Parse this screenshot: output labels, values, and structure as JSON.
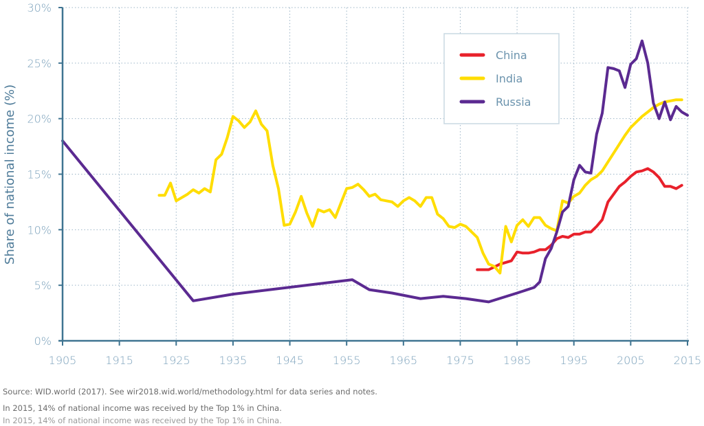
{
  "chart_data": {
    "type": "line",
    "title": "",
    "xlabel": "",
    "ylabel": "Share of national income (%)",
    "xlim": [
      1905,
      2015
    ],
    "ylim": [
      0,
      30
    ],
    "x_ticks": [
      1905,
      1915,
      1925,
      1935,
      1945,
      1955,
      1965,
      1975,
      1985,
      1995,
      2005,
      2015
    ],
    "x_tick_labels": [
      "1905",
      "1915",
      "1925",
      "1935",
      "1945",
      "1955",
      "1965",
      "1975",
      "1985",
      "1995",
      "2005",
      "2015"
    ],
    "y_ticks": [
      0,
      5,
      10,
      15,
      20,
      25,
      30
    ],
    "y_tick_labels": [
      "0%",
      "5%",
      "10%",
      "15%",
      "20%",
      "25%",
      "30%"
    ],
    "grid": true,
    "legend_position": "top-right",
    "series": [
      {
        "name": "China",
        "color": "#e8212b",
        "points": [
          [
            1978,
            6.4
          ],
          [
            1980,
            6.4
          ],
          [
            1982,
            6.9
          ],
          [
            1984,
            7.2
          ],
          [
            1985,
            8.0
          ],
          [
            1986,
            7.9
          ],
          [
            1987,
            7.9
          ],
          [
            1988,
            8.0
          ],
          [
            1989,
            8.2
          ],
          [
            1990,
            8.2
          ],
          [
            1991,
            8.6
          ],
          [
            1992,
            9.2
          ],
          [
            1993,
            9.4
          ],
          [
            1994,
            9.3
          ],
          [
            1995,
            9.6
          ],
          [
            1996,
            9.6
          ],
          [
            1997,
            9.8
          ],
          [
            1998,
            9.8
          ],
          [
            1999,
            10.3
          ],
          [
            2000,
            10.9
          ],
          [
            2001,
            12.5
          ],
          [
            2002,
            13.2
          ],
          [
            2003,
            13.9
          ],
          [
            2004,
            14.3
          ],
          [
            2005,
            14.8
          ],
          [
            2006,
            15.2
          ],
          [
            2007,
            15.3
          ],
          [
            2008,
            15.5
          ],
          [
            2009,
            15.2
          ],
          [
            2010,
            14.7
          ],
          [
            2011,
            13.9
          ],
          [
            2012,
            13.9
          ],
          [
            2013,
            13.7
          ],
          [
            2014,
            14.0
          ]
        ]
      },
      {
        "name": "India",
        "color": "#ffdd00",
        "points": [
          [
            1922,
            13.1
          ],
          [
            1923,
            13.1
          ],
          [
            1924,
            14.2
          ],
          [
            1925,
            12.6
          ],
          [
            1927,
            13.2
          ],
          [
            1928,
            13.6
          ],
          [
            1929,
            13.3
          ],
          [
            1930,
            13.7
          ],
          [
            1931,
            13.4
          ],
          [
            1932,
            16.3
          ],
          [
            1933,
            16.8
          ],
          [
            1934,
            18.3
          ],
          [
            1935,
            20.2
          ],
          [
            1936,
            19.8
          ],
          [
            1937,
            19.2
          ],
          [
            1938,
            19.7
          ],
          [
            1939,
            20.7
          ],
          [
            1940,
            19.5
          ],
          [
            1941,
            18.9
          ],
          [
            1942,
            15.8
          ],
          [
            1943,
            13.7
          ],
          [
            1944,
            10.4
          ],
          [
            1945,
            10.5
          ],
          [
            1946,
            11.6
          ],
          [
            1947,
            13.0
          ],
          [
            1948,
            11.5
          ],
          [
            1949,
            10.3
          ],
          [
            1950,
            11.8
          ],
          [
            1951,
            11.6
          ],
          [
            1952,
            11.8
          ],
          [
            1953,
            11.1
          ],
          [
            1954,
            12.4
          ],
          [
            1955,
            13.7
          ],
          [
            1956,
            13.8
          ],
          [
            1957,
            14.1
          ],
          [
            1958,
            13.6
          ],
          [
            1959,
            13.0
          ],
          [
            1960,
            13.2
          ],
          [
            1961,
            12.7
          ],
          [
            1962,
            12.6
          ],
          [
            1963,
            12.5
          ],
          [
            1964,
            12.1
          ],
          [
            1965,
            12.6
          ],
          [
            1966,
            12.9
          ],
          [
            1967,
            12.6
          ],
          [
            1968,
            12.1
          ],
          [
            1969,
            12.9
          ],
          [
            1970,
            12.9
          ],
          [
            1971,
            11.4
          ],
          [
            1972,
            11.0
          ],
          [
            1973,
            10.3
          ],
          [
            1974,
            10.2
          ],
          [
            1975,
            10.5
          ],
          [
            1976,
            10.3
          ],
          [
            1977,
            9.8
          ],
          [
            1978,
            9.3
          ],
          [
            1979,
            7.9
          ],
          [
            1980,
            6.9
          ],
          [
            1981,
            6.7
          ],
          [
            1982,
            6.1
          ],
          [
            1983,
            10.3
          ],
          [
            1984,
            8.9
          ],
          [
            1985,
            10.4
          ],
          [
            1986,
            10.9
          ],
          [
            1987,
            10.3
          ],
          [
            1988,
            11.1
          ],
          [
            1989,
            11.1
          ],
          [
            1990,
            10.4
          ],
          [
            1991,
            10.1
          ],
          [
            1992,
            9.9
          ],
          [
            1993,
            12.6
          ],
          [
            1994,
            12.4
          ],
          [
            1995,
            13.0
          ],
          [
            1996,
            13.3
          ],
          [
            1997,
            14.0
          ],
          [
            1998,
            14.5
          ],
          [
            1999,
            14.8
          ],
          [
            2000,
            15.3
          ],
          [
            2001,
            16.1
          ],
          [
            2002,
            16.9
          ],
          [
            2003,
            17.7
          ],
          [
            2004,
            18.5
          ],
          [
            2005,
            19.2
          ],
          [
            2006,
            19.7
          ],
          [
            2007,
            20.2
          ],
          [
            2008,
            20.6
          ],
          [
            2009,
            21.0
          ],
          [
            2010,
            21.3
          ],
          [
            2011,
            21.5
          ],
          [
            2012,
            21.6
          ],
          [
            2013,
            21.7
          ],
          [
            2014,
            21.7
          ]
        ]
      },
      {
        "name": "Russia",
        "color": "#5b2a91",
        "points": [
          [
            1905,
            18.0
          ],
          [
            1928,
            3.6
          ],
          [
            1935,
            4.2
          ],
          [
            1956,
            5.5
          ],
          [
            1959,
            4.6
          ],
          [
            1963,
            4.3
          ],
          [
            1968,
            3.8
          ],
          [
            1972,
            4.0
          ],
          [
            1976,
            3.8
          ],
          [
            1980,
            3.5
          ],
          [
            1985,
            4.3
          ],
          [
            1988,
            4.8
          ],
          [
            1989,
            5.3
          ],
          [
            1990,
            7.4
          ],
          [
            1991,
            8.3
          ],
          [
            1992,
            9.8
          ],
          [
            1993,
            11.6
          ],
          [
            1994,
            12.1
          ],
          [
            1995,
            14.5
          ],
          [
            1996,
            15.8
          ],
          [
            1997,
            15.2
          ],
          [
            1998,
            15.1
          ],
          [
            1999,
            18.6
          ],
          [
            2000,
            20.5
          ],
          [
            2001,
            24.6
          ],
          [
            2002,
            24.5
          ],
          [
            2003,
            24.3
          ],
          [
            2004,
            22.8
          ],
          [
            2005,
            24.9
          ],
          [
            2006,
            25.4
          ],
          [
            2007,
            27.0
          ],
          [
            2008,
            25.0
          ],
          [
            2009,
            21.4
          ],
          [
            2010,
            20.0
          ],
          [
            2011,
            21.5
          ],
          [
            2012,
            19.9
          ],
          [
            2013,
            21.1
          ],
          [
            2014,
            20.6
          ],
          [
            2015,
            20.3
          ]
        ]
      }
    ]
  },
  "notes": {
    "source": "Source: WID.world (2017). See wir2018.wid.world/methodology.html  for data series and notes.",
    "caption": "In 2015, 14% of national income was received by the Top 1% in China.",
    "caption_ghost": "In 2015, 14% of national income was received by the Top 1% in China."
  },
  "style": {
    "axis_color": "#3f7491",
    "grid_color": "#9bb4c6",
    "tick_label_color": "#7ba1bb",
    "legend_border": "#c9d8e2"
  }
}
